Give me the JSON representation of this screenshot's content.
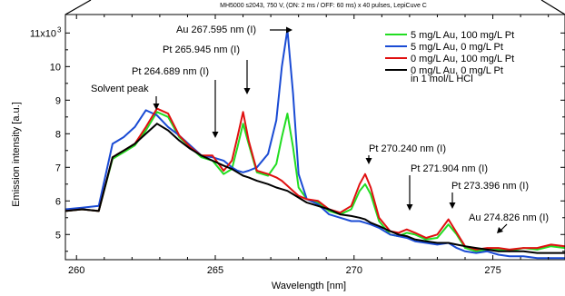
{
  "chart_data": {
    "type": "line",
    "title": "MH5000 s2043, 750 V, (ON: 2 ms / OFF: 60 ms) x 40 pulses, LepiCuve C",
    "xlabel": "Wavelength [nm]",
    "ylabel": "Emission intensity [a.u.]",
    "xlim": [
      259.6,
      277.6
    ],
    "ylim": [
      4.25,
      11.55
    ],
    "x_ticks": [
      260,
      265,
      270,
      275
    ],
    "x_tick_labels": [
      "260",
      "265",
      "270",
      "275"
    ],
    "y_ticks": [
      5,
      6,
      7,
      8,
      9,
      10,
      11
    ],
    "y_tick_labels": [
      "5",
      "6",
      "7",
      "8",
      "9",
      "10",
      "11x10"
    ],
    "y_tick_exponent": "3",
    "grid": false,
    "legend_position": "top-right",
    "legend_note": "in 1 mol/L HCl",
    "series": [
      {
        "name": "5 mg/L Au, 100 mg/L Pt",
        "color": "#22dd22",
        "x": [
          259.6,
          260.2,
          260.8,
          261.3,
          261.7,
          262.1,
          262.5,
          262.9,
          263.3,
          263.7,
          264.1,
          264.5,
          264.9,
          265.3,
          265.6,
          265.8,
          266.0,
          266.2,
          266.5,
          266.9,
          267.2,
          267.4,
          267.6,
          267.8,
          268.0,
          268.3,
          268.7,
          269.1,
          269.5,
          269.9,
          270.2,
          270.4,
          270.6,
          270.9,
          271.3,
          271.6,
          271.9,
          272.2,
          272.6,
          273.0,
          273.4,
          273.7,
          274.0,
          274.4,
          274.8,
          275.2,
          275.6,
          276.1,
          276.6,
          277.1,
          277.6
        ],
        "values": [
          5.7,
          5.75,
          5.7,
          7.25,
          7.45,
          7.65,
          8.1,
          8.65,
          8.5,
          7.9,
          7.6,
          7.3,
          7.2,
          6.8,
          6.95,
          7.6,
          8.3,
          7.7,
          6.85,
          6.75,
          7.1,
          7.9,
          8.6,
          7.6,
          6.4,
          6.05,
          5.95,
          5.7,
          5.6,
          5.75,
          6.3,
          6.5,
          6.2,
          5.4,
          5.0,
          4.95,
          5.05,
          5.0,
          4.85,
          4.9,
          5.3,
          5.0,
          4.6,
          4.5,
          4.55,
          4.55,
          4.5,
          4.6,
          4.55,
          4.65,
          4.6
        ]
      },
      {
        "name": "5 mg/L Au, 0 mg/L Pt",
        "color": "#1a4bd4",
        "x": [
          259.6,
          260.2,
          260.8,
          261.3,
          261.7,
          262.1,
          262.5,
          262.9,
          263.3,
          263.7,
          264.1,
          264.5,
          264.9,
          265.3,
          265.6,
          265.8,
          266.0,
          266.2,
          266.5,
          266.9,
          267.2,
          267.4,
          267.6,
          267.8,
          268.0,
          268.3,
          268.7,
          269.1,
          269.5,
          269.9,
          270.2,
          270.4,
          270.6,
          270.9,
          271.3,
          271.6,
          271.9,
          272.2,
          272.6,
          273.0,
          273.4,
          273.7,
          274.0,
          274.4,
          274.8,
          275.2,
          275.6,
          276.1,
          276.6,
          277.1,
          277.6
        ],
        "values": [
          5.75,
          5.8,
          5.85,
          7.7,
          7.9,
          8.2,
          8.7,
          8.55,
          8.2,
          7.95,
          7.65,
          7.35,
          7.3,
          7.2,
          7.0,
          6.9,
          6.85,
          6.9,
          7.0,
          7.4,
          8.4,
          10.0,
          11.1,
          9.2,
          6.8,
          6.05,
          5.9,
          5.6,
          5.5,
          5.4,
          5.4,
          5.35,
          5.3,
          5.2,
          5.0,
          4.95,
          4.9,
          4.8,
          4.75,
          4.7,
          4.75,
          4.6,
          4.5,
          4.45,
          4.5,
          4.4,
          4.35,
          4.35,
          4.3,
          4.3,
          4.3
        ]
      },
      {
        "name": "0 mg/L Au, 100 mg/L Pt",
        "color": "#e01010",
        "x": [
          259.6,
          260.2,
          260.8,
          261.3,
          261.7,
          262.1,
          262.5,
          262.9,
          263.3,
          263.7,
          264.1,
          264.5,
          264.9,
          265.3,
          265.6,
          265.8,
          266.0,
          266.2,
          266.5,
          266.9,
          267.2,
          267.4,
          267.6,
          267.8,
          268.0,
          268.3,
          268.7,
          269.1,
          269.5,
          269.9,
          270.2,
          270.4,
          270.6,
          270.9,
          271.3,
          271.6,
          271.9,
          272.2,
          272.6,
          273.0,
          273.4,
          273.7,
          274.0,
          274.4,
          274.8,
          275.2,
          275.6,
          276.1,
          276.6,
          277.1,
          277.6
        ],
        "values": [
          5.7,
          5.75,
          5.7,
          7.3,
          7.5,
          7.7,
          8.2,
          8.75,
          8.6,
          7.95,
          7.6,
          7.35,
          7.35,
          6.9,
          7.2,
          7.9,
          8.65,
          7.8,
          6.9,
          6.8,
          6.7,
          6.6,
          6.45,
          6.3,
          6.15,
          6.05,
          6.0,
          5.75,
          5.65,
          5.85,
          6.5,
          6.8,
          6.4,
          5.5,
          5.1,
          5.05,
          5.15,
          5.05,
          4.9,
          5.0,
          5.45,
          5.05,
          4.65,
          4.55,
          4.6,
          4.6,
          4.55,
          4.6,
          4.6,
          4.7,
          4.65
        ]
      },
      {
        "name": "0 mg/L Au, 0 mg/L Pt",
        "color": "#000000",
        "x": [
          259.6,
          260.2,
          260.8,
          261.3,
          261.7,
          262.1,
          262.5,
          262.9,
          263.3,
          263.7,
          264.1,
          264.5,
          264.9,
          265.3,
          265.6,
          265.8,
          266.0,
          266.2,
          266.5,
          266.9,
          267.2,
          267.4,
          267.6,
          267.8,
          268.0,
          268.3,
          268.7,
          269.1,
          269.5,
          269.9,
          270.2,
          270.4,
          270.6,
          270.9,
          271.3,
          271.6,
          271.9,
          272.2,
          272.6,
          273.0,
          273.4,
          273.7,
          274.0,
          274.4,
          274.8,
          275.2,
          275.6,
          276.1,
          276.6,
          277.1,
          277.6
        ],
        "values": [
          5.7,
          5.75,
          5.7,
          7.3,
          7.5,
          7.7,
          8.0,
          8.3,
          8.1,
          7.8,
          7.55,
          7.35,
          7.2,
          7.05,
          6.95,
          6.85,
          6.75,
          6.7,
          6.6,
          6.5,
          6.4,
          6.35,
          6.3,
          6.2,
          6.1,
          5.95,
          5.85,
          5.75,
          5.6,
          5.55,
          5.5,
          5.45,
          5.35,
          5.25,
          5.1,
          5.0,
          4.95,
          4.85,
          4.8,
          4.75,
          4.75,
          4.7,
          4.65,
          4.6,
          4.55,
          4.5,
          4.5,
          4.5,
          4.45,
          4.45,
          4.45
        ]
      }
    ],
    "annotations": [
      {
        "text": "Solvent peak",
        "x": 262.7,
        "y": 8.55
      },
      {
        "text": "Pt 264.689 nm (I)",
        "x": 264.689,
        "y": 7.35
      },
      {
        "text": "Pt 265.945 nm (I)",
        "x": 265.945,
        "y": 8.65
      },
      {
        "text": "Au 267.595 nm (I)",
        "x": 267.595,
        "y": 11.1
      },
      {
        "text": "Pt 270.240 nm (I)",
        "x": 270.24,
        "y": 6.8
      },
      {
        "text": "Pt 271.904 nm (I)",
        "x": 271.904,
        "y": 5.15
      },
      {
        "text": "Pt 273.396 nm (I)",
        "x": 273.396,
        "y": 5.45
      },
      {
        "text": "Au 274.826 nm (I)",
        "x": 274.826,
        "y": 4.6
      }
    ]
  }
}
